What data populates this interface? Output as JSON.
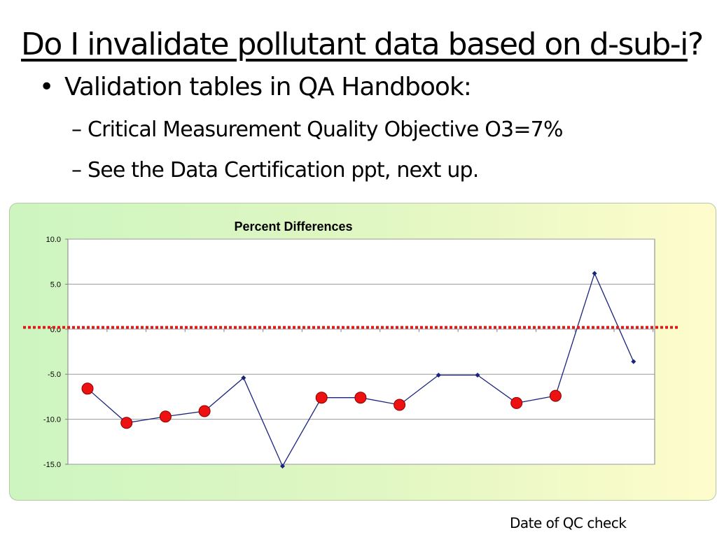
{
  "slide": {
    "title_main": "Do I invalidate pollutant data based on d-sub-i",
    "title_end": "?",
    "bullet_symbol": "•",
    "bullet": "Validation tables in QA Handbook:",
    "sub_dash": "–",
    "sub_items": [
      "Critical Measurement Quality Objective O3=7%",
      "See the Data Certification ppt, next up."
    ],
    "x_caption": "Date of QC check"
  },
  "chart_data": {
    "type": "line",
    "title": "Percent Differences",
    "xlabel": "Date of QC check",
    "ylabel": "",
    "ylim": [
      -15,
      10
    ],
    "yticks": [
      "10.0",
      "5.0",
      "0.0",
      "-5.0",
      "-10.0",
      "-15.0"
    ],
    "grid": true,
    "x": [
      1,
      2,
      3,
      4,
      5,
      6,
      7,
      8,
      9,
      10,
      11,
      12,
      13,
      14,
      15
    ],
    "values": [
      -6.6,
      -10.4,
      -9.7,
      -9.1,
      -5.4,
      -15.2,
      -7.6,
      -7.6,
      -8.4,
      -5.1,
      -5.1,
      -8.2,
      -7.4,
      6.2,
      -3.6
    ],
    "flagged": [
      true,
      true,
      true,
      true,
      false,
      false,
      true,
      true,
      true,
      false,
      false,
      true,
      true,
      false,
      false
    ],
    "reference_line": {
      "y": 0.2,
      "style": "dotted",
      "color": "#e01a1a"
    },
    "colors": {
      "line": "#1a237e",
      "marker": "#1a237e",
      "flag_fill": "#ee1111",
      "flag_stroke": "#8b0000"
    }
  }
}
